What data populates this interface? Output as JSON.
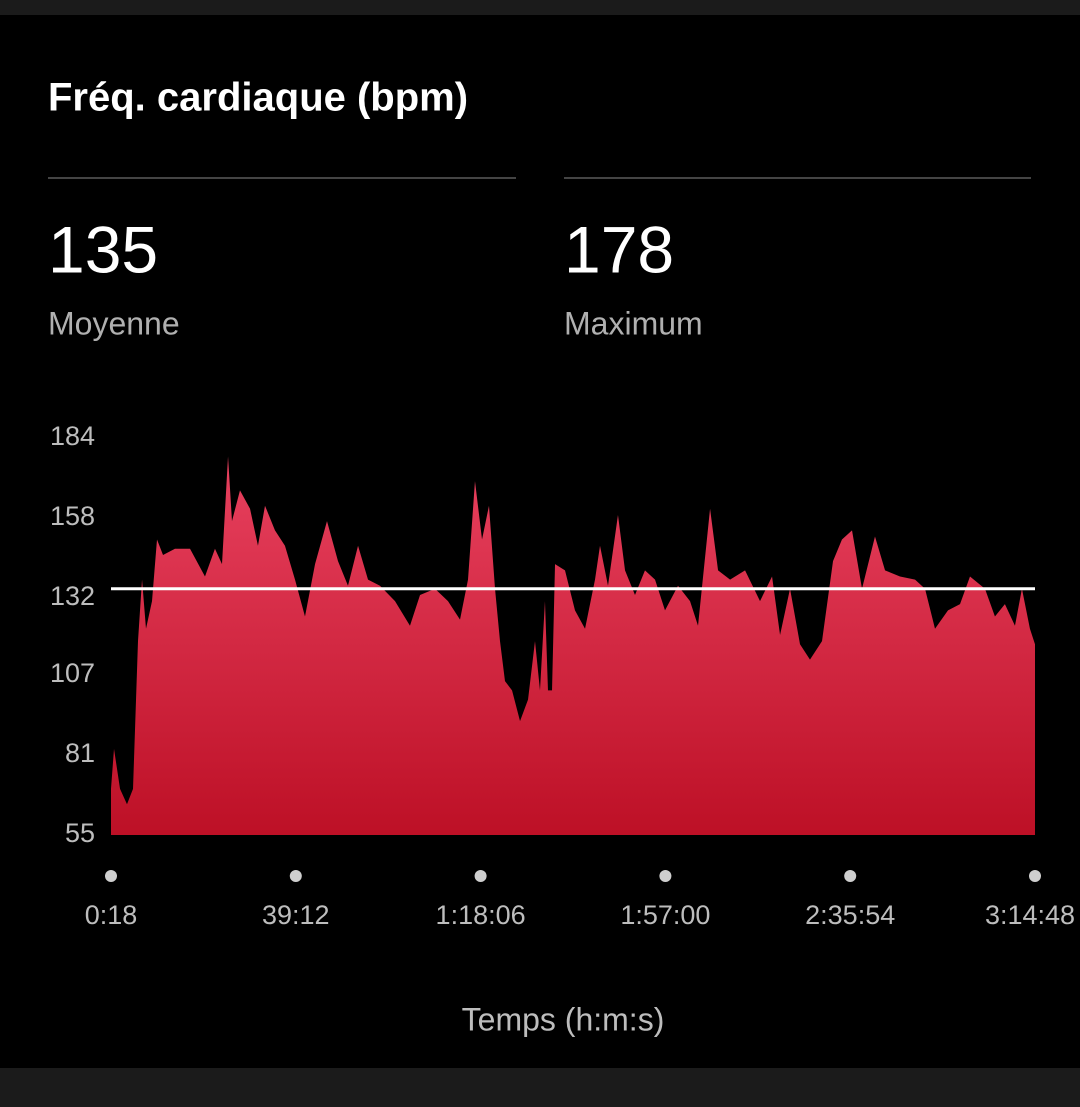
{
  "header": {
    "title": "Fréq. cardiaque (bpm)"
  },
  "stats": [
    {
      "value": 135,
      "label": "Moyenne"
    },
    {
      "value": 178,
      "label": "Maximum"
    }
  ],
  "chart_data": {
    "type": "area",
    "x_label": "Temps (h:m:s)",
    "x": [
      18,
      56,
      132,
      220,
      296,
      359,
      410,
      460,
      536,
      599,
      675,
      826,
      1016,
      1205,
      1331,
      1420,
      1496,
      1546,
      1647,
      1774,
      1874,
      1963,
      2089,
      2215,
      2342,
      2468,
      2595,
      2746,
      2885,
      3011,
      3138,
      3264,
      3415,
      3605,
      3794,
      3921,
      4110,
      4274,
      4426,
      4527,
      4615,
      4704,
      4792,
      4868,
      4931,
      4994,
      5083,
      5184,
      5285,
      5373,
      5436,
      5499,
      5537,
      5588,
      5626,
      5752,
      5878,
      6005,
      6131,
      6194,
      6295,
      6421,
      6510,
      6636,
      6762,
      6889,
      7015,
      7179,
      7331,
      7432,
      7584,
      7685,
      7837,
      8026,
      8215,
      8367,
      8468,
      8594,
      8720,
      8846,
      8998,
      9137,
      9250,
      9377,
      9503,
      9667,
      9794,
      9983,
      10173,
      10299,
      10425,
      10589,
      10741,
      10867,
      11056,
      11182,
      11308,
      11435,
      11523,
      11624,
      11688
    ],
    "series": [
      {
        "name": "Fréq. cardiaque",
        "color": "#e8415f",
        "values": [
          70,
          83,
          70,
          65,
          70,
          118,
          138,
          122,
          131,
          151,
          146,
          148,
          148,
          139,
          148,
          143,
          178,
          157,
          167,
          161,
          149,
          162,
          154,
          149,
          138,
          126,
          143,
          157,
          144,
          136,
          149,
          138,
          136,
          131,
          123,
          133,
          135,
          131,
          125,
          138,
          170,
          151,
          162,
          135,
          118,
          105,
          102,
          92,
          99,
          118,
          102,
          131,
          102,
          102,
          143,
          141,
          128,
          122,
          138,
          149,
          136,
          159,
          141,
          133,
          141,
          138,
          128,
          136,
          131,
          123,
          161,
          141,
          138,
          141,
          131,
          139,
          120,
          135,
          117,
          112,
          118,
          144,
          151,
          154,
          135,
          152,
          141,
          139,
          138,
          135,
          122,
          128,
          130,
          139,
          135,
          126,
          130,
          123,
          135,
          122,
          117
        ]
      }
    ],
    "xlim": [
      18,
      11688
    ],
    "xticks": [
      {
        "value": 18,
        "label": "0:18"
      },
      {
        "value": 2352,
        "label": "39:12"
      },
      {
        "value": 4686,
        "label": "1:18:06"
      },
      {
        "value": 7020,
        "label": "1:57:00"
      },
      {
        "value": 9354,
        "label": "2:35:54"
      },
      {
        "value": 11688,
        "label": "3:14:48"
      }
    ],
    "ylim": [
      55,
      184
    ],
    "yticks": [
      55,
      81,
      107,
      132,
      158,
      184
    ]
  }
}
